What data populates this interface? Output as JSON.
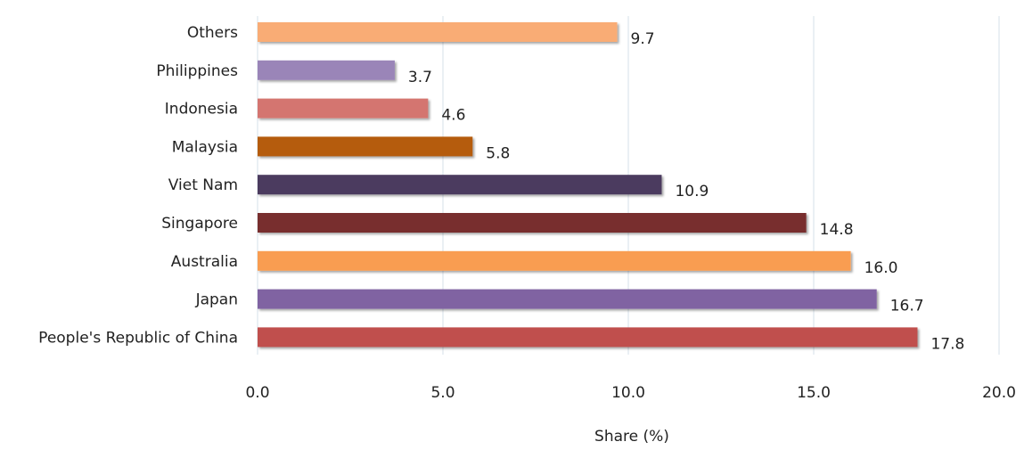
{
  "chart_data": {
    "type": "bar",
    "orientation": "horizontal",
    "categories": [
      "Others",
      "Philippines",
      "Indonesia",
      "Malaysia",
      "Viet Nam",
      "Singapore",
      "Australia",
      "Japan",
      "People's Republic of China"
    ],
    "values": [
      9.7,
      3.7,
      4.6,
      5.8,
      10.9,
      14.8,
      16.0,
      16.7,
      17.8
    ],
    "value_labels": [
      "9.7",
      "3.7",
      "4.6",
      "5.8",
      "10.9",
      "14.8",
      "16.0",
      "16.7",
      "17.8"
    ],
    "colors": [
      "#f9ac75",
      "#9a85b8",
      "#d4746f",
      "#b55c10",
      "#4c3a5e",
      "#782f2f",
      "#f99d51",
      "#8064a2",
      "#c0504d"
    ],
    "xlabel": "Share (%)",
    "ylabel": "",
    "xlim": [
      0,
      20
    ],
    "x_ticks": [
      "0.0",
      "5.0",
      "10.0",
      "15.0",
      "20.0"
    ],
    "grid": "vertical",
    "legend": "none"
  }
}
